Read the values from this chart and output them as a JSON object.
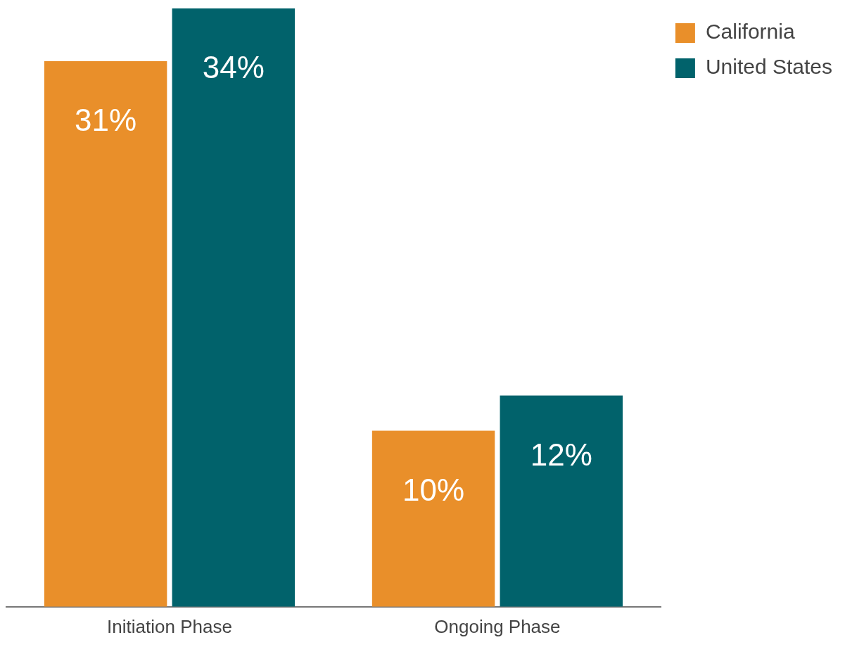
{
  "chart_data": {
    "type": "bar",
    "categories": [
      "Initiation Phase",
      "Ongoing Phase"
    ],
    "series": [
      {
        "name": "California",
        "color": "#e98f2a",
        "values": [
          31,
          10
        ],
        "value_labels": [
          "31%",
          "10%"
        ]
      },
      {
        "name": "United States",
        "color": "#01626b",
        "values": [
          34,
          12
        ],
        "value_labels": [
          "34%",
          "12%"
        ]
      }
    ],
    "legend": "top right"
  }
}
